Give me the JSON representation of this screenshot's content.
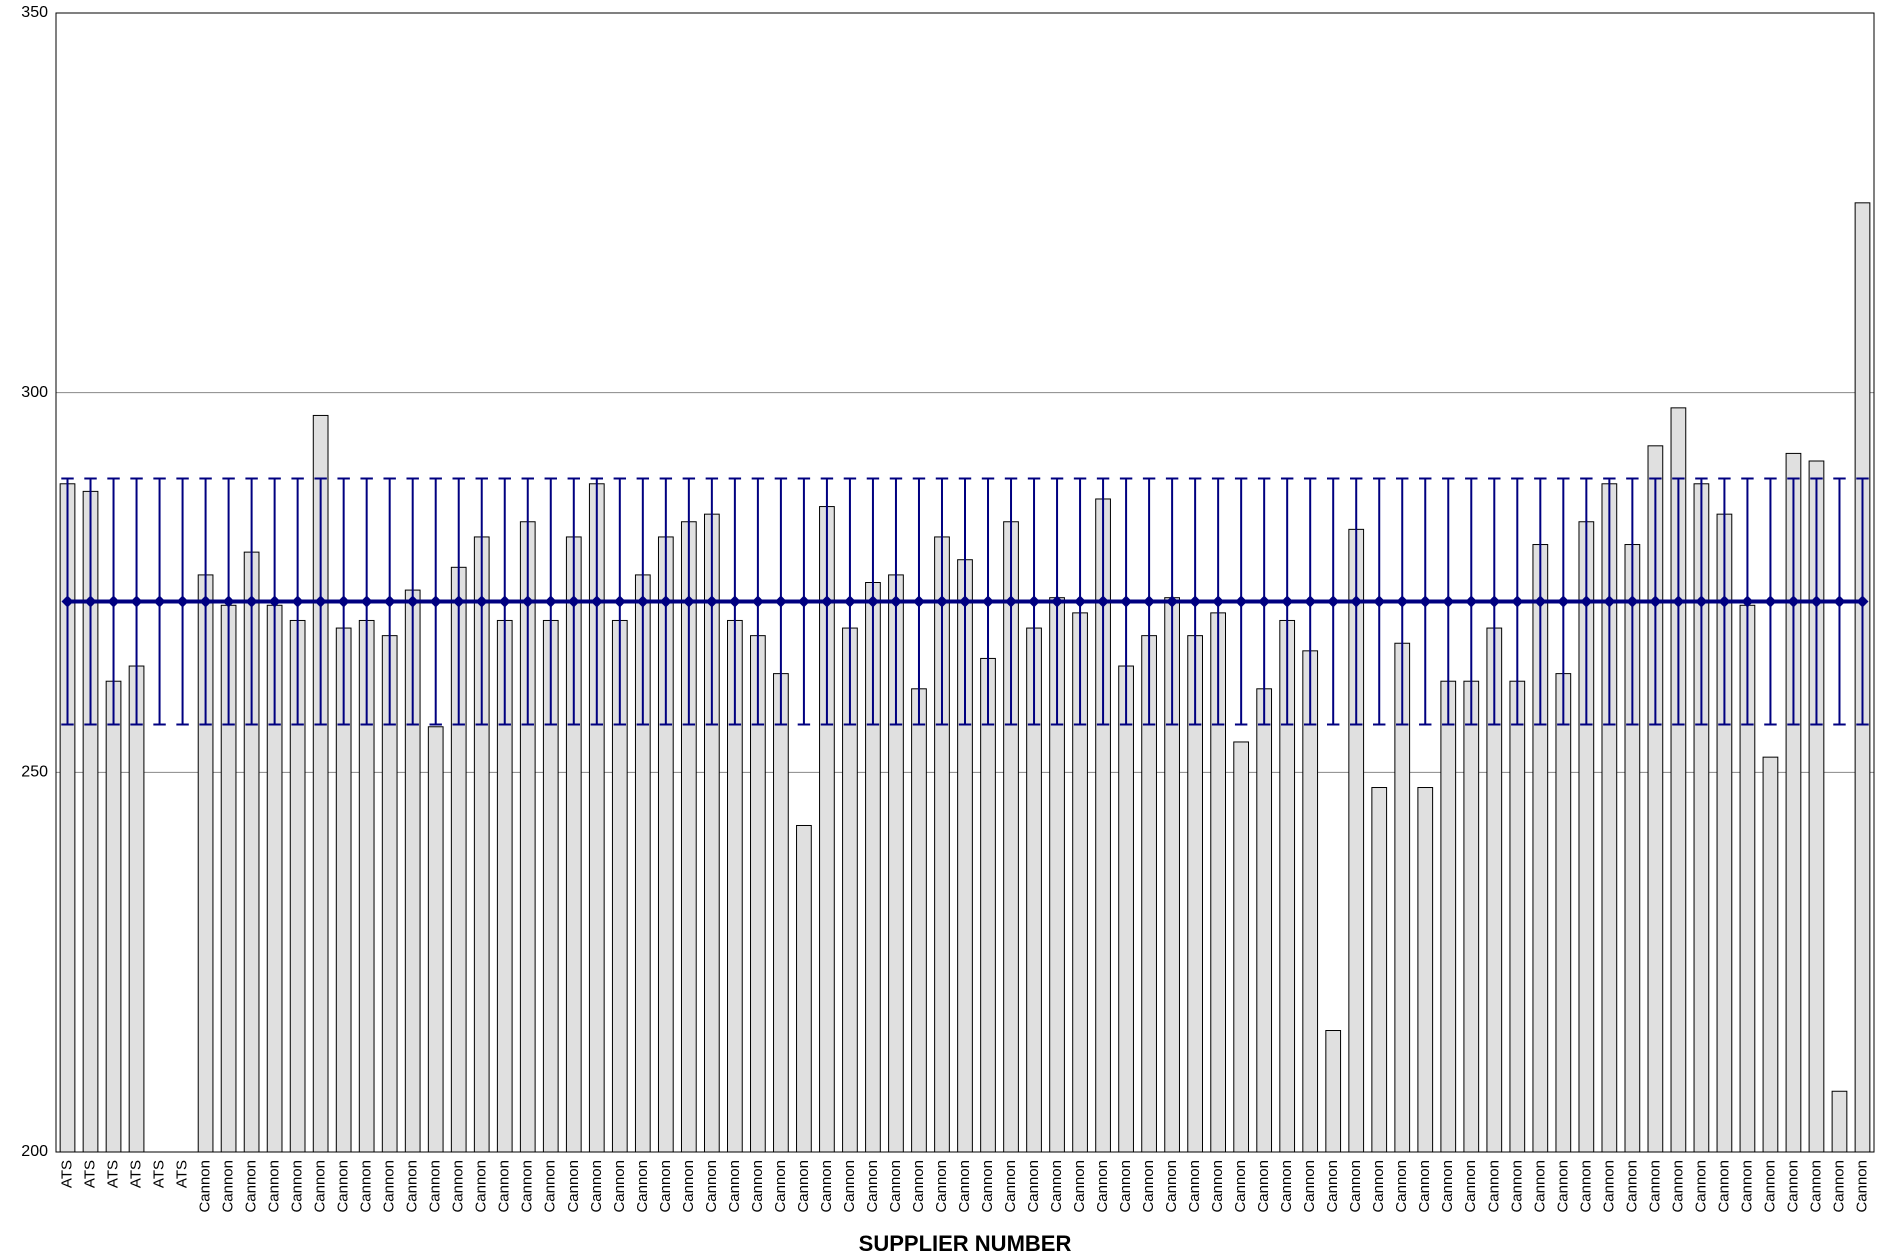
{
  "chart_data": {
    "type": "bar",
    "x_label": "SUPPLIER NUMBER",
    "categories": [
      "ATS",
      "ATS",
      "ATS",
      "ATS",
      "ATS",
      "ATS",
      "Cannon",
      "Cannon",
      "Cannon",
      "Cannon",
      "Cannon",
      "Cannon",
      "Cannon",
      "Cannon",
      "Cannon",
      "Cannon",
      "Cannon",
      "Cannon",
      "Cannon",
      "Cannon",
      "Cannon",
      "Cannon",
      "Cannon",
      "Cannon",
      "Cannon",
      "Cannon",
      "Cannon",
      "Cannon",
      "Cannon",
      "Cannon",
      "Cannon",
      "Cannon",
      "Cannon",
      "Cannon",
      "Cannon",
      "Cannon",
      "Cannon",
      "Cannon",
      "Cannon",
      "Cannon",
      "Cannon",
      "Cannon",
      "Cannon",
      "Cannon",
      "Cannon",
      "Cannon",
      "Cannon",
      "Cannon",
      "Cannon",
      "Cannon",
      "Cannon",
      "Cannon",
      "Cannon",
      "Cannon",
      "Cannon",
      "Cannon",
      "Cannon",
      "Cannon",
      "Cannon",
      "Cannon",
      "Cannon",
      "Cannon",
      "Cannon",
      "Cannon",
      "Cannon",
      "Cannon",
      "Cannon",
      "Cannon",
      "Cannon",
      "Cannon",
      "Cannon",
      "Cannon",
      "Cannon",
      "Cannon",
      "Cannon",
      "Cannon",
      "Cannon",
      "Cannon",
      "Cannon"
    ],
    "series": [
      {
        "type": "bar",
        "color": "#e0e0e0",
        "values": [
          288,
          287,
          262,
          264,
          null,
          null,
          276,
          272,
          279,
          272,
          270,
          297,
          269,
          270,
          268,
          274,
          256,
          277,
          281,
          270,
          283,
          270,
          281,
          288,
          270,
          276,
          281,
          283,
          284,
          270,
          268,
          263,
          243,
          285,
          269,
          275,
          276,
          261,
          281,
          278,
          265,
          283,
          269,
          273,
          271,
          286,
          264,
          268,
          273,
          268,
          271,
          254,
          261,
          270,
          266,
          216,
          282,
          248,
          267,
          248,
          262,
          262,
          269,
          262,
          280,
          263,
          283,
          288,
          280,
          293,
          298,
          288,
          284,
          272,
          252,
          292,
          291,
          208,
          325
        ]
      },
      {
        "type": "line",
        "color": "#000080",
        "values": [
          272.5,
          272.5,
          272.5,
          272.5,
          272.5,
          272.5,
          272.5,
          272.5,
          272.5,
          272.5,
          272.5,
          272.5,
          272.5,
          272.5,
          272.5,
          272.5,
          272.5,
          272.5,
          272.5,
          272.5,
          272.5,
          272.5,
          272.5,
          272.5,
          272.5,
          272.5,
          272.5,
          272.5,
          272.5,
          272.5,
          272.5,
          272.5,
          272.5,
          272.5,
          272.5,
          272.5,
          272.5,
          272.5,
          272.5,
          272.5,
          272.5,
          272.5,
          272.5,
          272.5,
          272.5,
          272.5,
          272.5,
          272.5,
          272.5,
          272.5,
          272.5,
          272.5,
          272.5,
          272.5,
          272.5,
          272.5,
          272.5,
          272.5,
          272.5,
          272.5,
          272.5,
          272.5,
          272.5,
          272.5,
          272.5,
          272.5,
          272.5,
          272.5,
          272.5,
          272.5,
          272.5,
          272.5,
          272.5,
          272.5,
          272.5,
          272.5,
          272.5,
          272.5,
          272.5
        ],
        "error": 16.2
      }
    ],
    "ylim": [
      200,
      350
    ],
    "yticks": [
      200,
      250,
      300,
      350
    ],
    "grid": true
  }
}
